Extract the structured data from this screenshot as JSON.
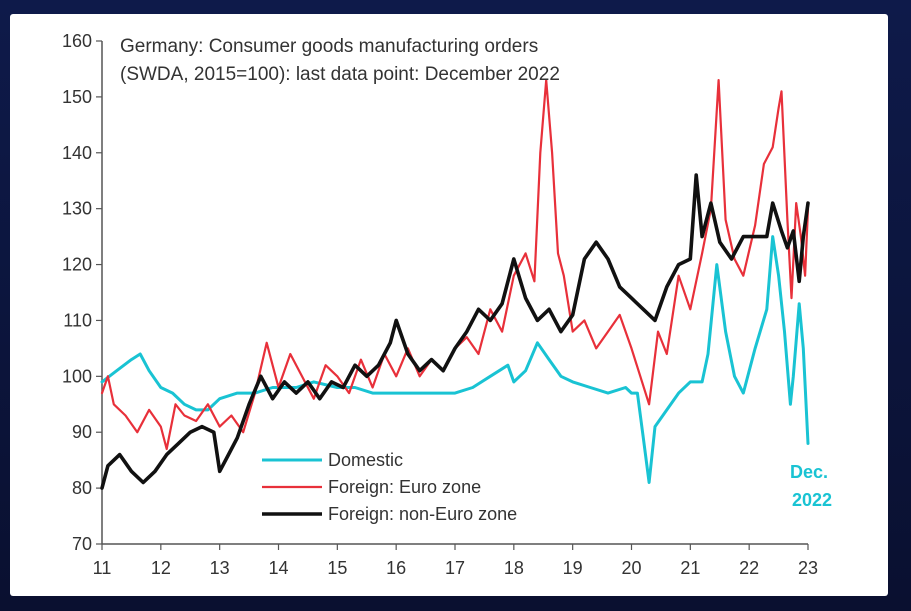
{
  "chart_data": {
    "type": "line",
    "title_line1": "Germany: Consumer goods manufacturing orders",
    "title_line2": "(SWDA, 2015=100):  last data point: December 2022",
    "xlabel": "",
    "ylabel": "",
    "xlim": [
      11,
      23
    ],
    "ylim": [
      70,
      160
    ],
    "y_ticks": [
      "70",
      "80",
      "90",
      "100",
      "110",
      "120",
      "130",
      "140",
      "150",
      "160"
    ],
    "x_ticks": [
      "11",
      "12",
      "13",
      "14",
      "15",
      "16",
      "17",
      "18",
      "19",
      "20",
      "21",
      "22",
      "23"
    ],
    "legend_position": "bottom-left",
    "annotation_line1": "Dec.",
    "annotation_line2": "2022",
    "series": [
      {
        "name": "Domestic",
        "color": "#19c3d3",
        "points": [
          [
            11.0,
            99
          ],
          [
            11.25,
            101
          ],
          [
            11.5,
            103
          ],
          [
            11.65,
            104
          ],
          [
            11.8,
            101
          ],
          [
            12.0,
            98
          ],
          [
            12.2,
            97
          ],
          [
            12.4,
            95
          ],
          [
            12.6,
            94
          ],
          [
            12.8,
            94
          ],
          [
            13.0,
            96
          ],
          [
            13.3,
            97
          ],
          [
            13.6,
            97
          ],
          [
            13.9,
            98
          ],
          [
            14.3,
            98
          ],
          [
            14.6,
            99
          ],
          [
            15.0,
            98
          ],
          [
            15.3,
            98
          ],
          [
            15.6,
            97
          ],
          [
            16.0,
            97
          ],
          [
            16.3,
            97
          ],
          [
            16.6,
            97
          ],
          [
            17.0,
            97
          ],
          [
            17.3,
            98
          ],
          [
            17.6,
            100
          ],
          [
            17.9,
            102
          ],
          [
            18.0,
            99
          ],
          [
            18.2,
            101
          ],
          [
            18.4,
            106
          ],
          [
            18.6,
            103
          ],
          [
            18.8,
            100
          ],
          [
            19.0,
            99
          ],
          [
            19.3,
            98
          ],
          [
            19.6,
            97
          ],
          [
            19.9,
            98
          ],
          [
            20.0,
            97
          ],
          [
            20.1,
            97
          ],
          [
            20.2,
            89
          ],
          [
            20.3,
            81
          ],
          [
            20.4,
            91
          ],
          [
            20.6,
            94
          ],
          [
            20.8,
            97
          ],
          [
            21.0,
            99
          ],
          [
            21.2,
            99
          ],
          [
            21.3,
            104
          ],
          [
            21.45,
            120
          ],
          [
            21.6,
            108
          ],
          [
            21.75,
            100
          ],
          [
            21.9,
            97
          ],
          [
            22.1,
            105
          ],
          [
            22.3,
            112
          ],
          [
            22.4,
            125
          ],
          [
            22.5,
            118
          ],
          [
            22.6,
            108
          ],
          [
            22.7,
            95
          ],
          [
            22.75,
            100
          ],
          [
            22.85,
            113
          ],
          [
            22.92,
            105
          ],
          [
            23.0,
            88
          ]
        ]
      },
      {
        "name": "Foreign: Euro zone",
        "color": "#e8303a",
        "points": [
          [
            11.0,
            97
          ],
          [
            11.1,
            100
          ],
          [
            11.2,
            95
          ],
          [
            11.4,
            93
          ],
          [
            11.6,
            90
          ],
          [
            11.8,
            94
          ],
          [
            12.0,
            91
          ],
          [
            12.1,
            87
          ],
          [
            12.25,
            95
          ],
          [
            12.4,
            93
          ],
          [
            12.6,
            92
          ],
          [
            12.8,
            95
          ],
          [
            13.0,
            91
          ],
          [
            13.2,
            93
          ],
          [
            13.4,
            90
          ],
          [
            13.6,
            97
          ],
          [
            13.8,
            106
          ],
          [
            14.0,
            98
          ],
          [
            14.2,
            104
          ],
          [
            14.4,
            100
          ],
          [
            14.6,
            96
          ],
          [
            14.8,
            102
          ],
          [
            15.0,
            100
          ],
          [
            15.2,
            97
          ],
          [
            15.4,
            103
          ],
          [
            15.6,
            98
          ],
          [
            15.8,
            104
          ],
          [
            16.0,
            100
          ],
          [
            16.2,
            105
          ],
          [
            16.4,
            100
          ],
          [
            16.6,
            103
          ],
          [
            16.8,
            101
          ],
          [
            17.0,
            105
          ],
          [
            17.2,
            107
          ],
          [
            17.4,
            104
          ],
          [
            17.6,
            112
          ],
          [
            17.8,
            108
          ],
          [
            18.0,
            118
          ],
          [
            18.2,
            122
          ],
          [
            18.35,
            117
          ],
          [
            18.45,
            140
          ],
          [
            18.55,
            153
          ],
          [
            18.65,
            140
          ],
          [
            18.75,
            122
          ],
          [
            18.85,
            118
          ],
          [
            19.0,
            108
          ],
          [
            19.2,
            110
          ],
          [
            19.4,
            105
          ],
          [
            19.6,
            108
          ],
          [
            19.8,
            111
          ],
          [
            20.0,
            105
          ],
          [
            20.15,
            100
          ],
          [
            20.3,
            95
          ],
          [
            20.45,
            108
          ],
          [
            20.6,
            104
          ],
          [
            20.8,
            118
          ],
          [
            21.0,
            112
          ],
          [
            21.2,
            122
          ],
          [
            21.35,
            130
          ],
          [
            21.48,
            153
          ],
          [
            21.6,
            128
          ],
          [
            21.75,
            121
          ],
          [
            21.9,
            118
          ],
          [
            22.1,
            127
          ],
          [
            22.25,
            138
          ],
          [
            22.4,
            141
          ],
          [
            22.5,
            148
          ],
          [
            22.55,
            151
          ],
          [
            22.65,
            128
          ],
          [
            22.72,
            114
          ],
          [
            22.8,
            131
          ],
          [
            22.88,
            125
          ],
          [
            22.95,
            118
          ],
          [
            23.0,
            130
          ]
        ]
      },
      {
        "name": "Foreign: non-Euro zone",
        "color": "#111111",
        "points": [
          [
            11.0,
            80
          ],
          [
            11.1,
            84
          ],
          [
            11.3,
            86
          ],
          [
            11.5,
            83
          ],
          [
            11.7,
            81
          ],
          [
            11.9,
            83
          ],
          [
            12.1,
            86
          ],
          [
            12.3,
            88
          ],
          [
            12.5,
            90
          ],
          [
            12.7,
            91
          ],
          [
            12.9,
            90
          ],
          [
            13.0,
            83
          ],
          [
            13.15,
            86
          ],
          [
            13.3,
            89
          ],
          [
            13.5,
            95
          ],
          [
            13.7,
            100
          ],
          [
            13.9,
            96
          ],
          [
            14.1,
            99
          ],
          [
            14.3,
            97
          ],
          [
            14.5,
            99
          ],
          [
            14.7,
            96
          ],
          [
            14.9,
            99
          ],
          [
            15.1,
            98
          ],
          [
            15.3,
            102
          ],
          [
            15.5,
            100
          ],
          [
            15.7,
            102
          ],
          [
            15.9,
            106
          ],
          [
            16.0,
            110
          ],
          [
            16.2,
            104
          ],
          [
            16.4,
            101
          ],
          [
            16.6,
            103
          ],
          [
            16.8,
            101
          ],
          [
            17.0,
            105
          ],
          [
            17.2,
            108
          ],
          [
            17.4,
            112
          ],
          [
            17.6,
            110
          ],
          [
            17.8,
            113
          ],
          [
            18.0,
            121
          ],
          [
            18.2,
            114
          ],
          [
            18.4,
            110
          ],
          [
            18.6,
            112
          ],
          [
            18.8,
            108
          ],
          [
            19.0,
            111
          ],
          [
            19.2,
            121
          ],
          [
            19.4,
            124
          ],
          [
            19.6,
            121
          ],
          [
            19.8,
            116
          ],
          [
            20.0,
            114
          ],
          [
            20.2,
            112
          ],
          [
            20.4,
            110
          ],
          [
            20.6,
            116
          ],
          [
            20.8,
            120
          ],
          [
            21.0,
            121
          ],
          [
            21.1,
            136
          ],
          [
            21.2,
            125
          ],
          [
            21.35,
            131
          ],
          [
            21.5,
            124
          ],
          [
            21.7,
            121
          ],
          [
            21.9,
            125
          ],
          [
            22.1,
            125
          ],
          [
            22.3,
            125
          ],
          [
            22.4,
            131
          ],
          [
            22.55,
            126
          ],
          [
            22.65,
            123
          ],
          [
            22.75,
            126
          ],
          [
            22.85,
            117
          ],
          [
            22.92,
            125
          ],
          [
            23.0,
            131
          ]
        ]
      }
    ]
  }
}
